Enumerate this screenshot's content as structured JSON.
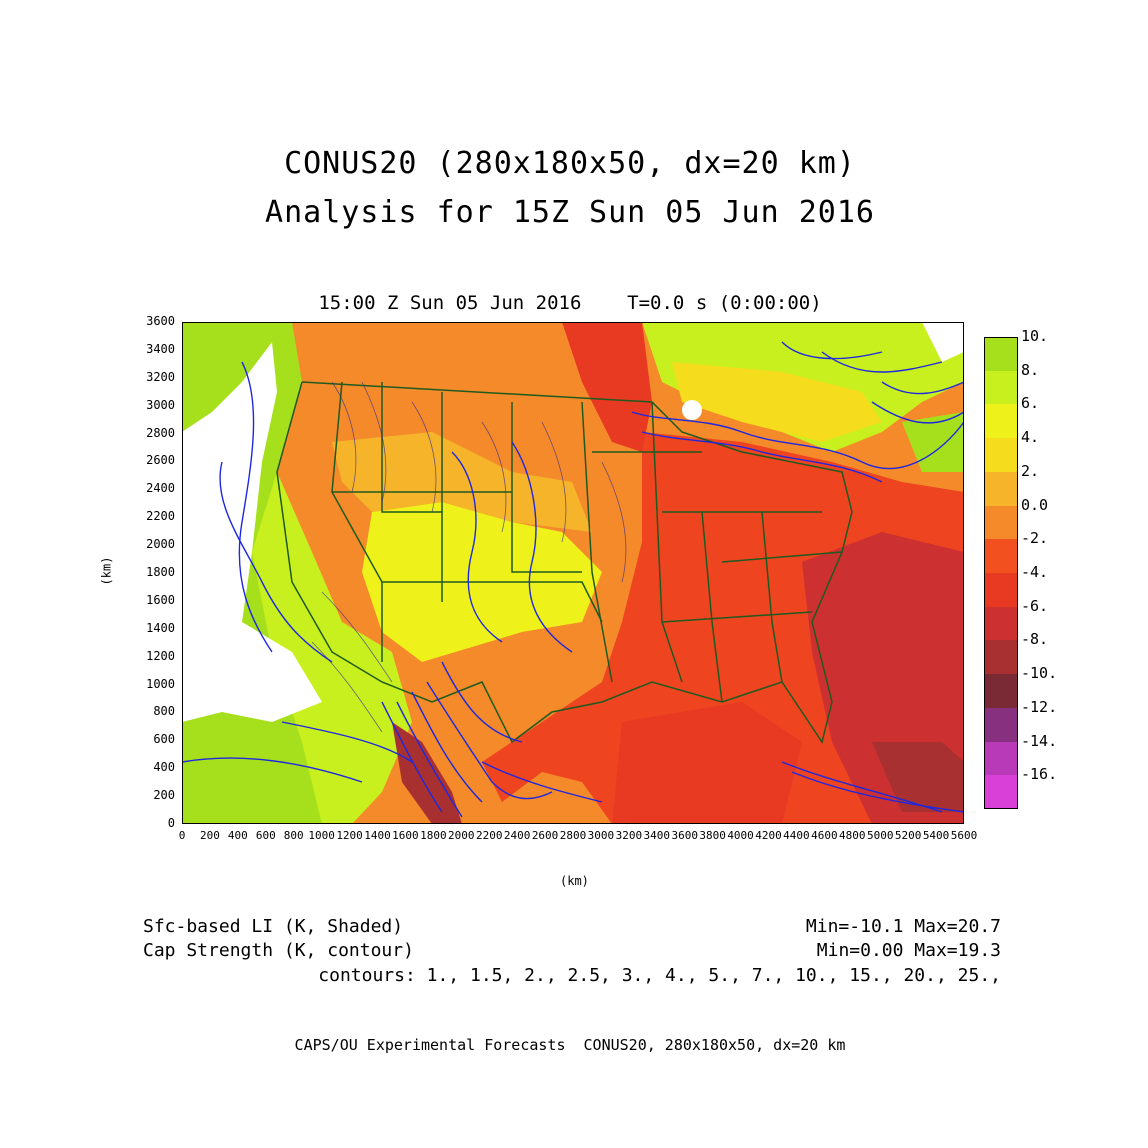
{
  "title": {
    "line1": "CONUS20 (280x180x50, dx=20 km)",
    "line2": "Analysis for 15Z Sun 05 Jun 2016"
  },
  "subtitle": "15:00 Z Sun 05 Jun 2016    T=0.0 s (0:00:00)",
  "axes": {
    "xlabel": "(km)",
    "ylabel": "(km)",
    "xlim": [
      0,
      5600
    ],
    "ylim": [
      0,
      3600
    ],
    "xticks": [
      "0",
      "200",
      "400",
      "600",
      "800",
      "1000",
      "1200",
      "1400",
      "1600",
      "1800",
      "2000",
      "2200",
      "2400",
      "2600",
      "2800",
      "3000",
      "3200",
      "3400",
      "3600",
      "3800",
      "4000",
      "4200",
      "4400",
      "4600",
      "4800",
      "5000",
      "5200",
      "5400",
      "5600"
    ],
    "yticks": [
      "0",
      "200",
      "400",
      "600",
      "800",
      "1000",
      "1200",
      "1400",
      "1600",
      "1800",
      "2000",
      "2200",
      "2400",
      "2600",
      "2800",
      "3000",
      "3200",
      "3400",
      "3600"
    ]
  },
  "colorbar": {
    "labels": [
      "10.",
      "8.",
      "6.",
      "4.",
      "2.",
      "0.0",
      "-2.",
      "-4.",
      "-6.",
      "-8.",
      "-10.",
      "-12.",
      "-14.",
      "-16."
    ],
    "colors": [
      "#a6e01c",
      "#c8f01e",
      "#eef21a",
      "#f5dc1c",
      "#f5b42a",
      "#f48a2a",
      "#f2501e",
      "#e83a22",
      "#cc3030",
      "#a83030",
      "#7a2a34",
      "#883080",
      "#b83ab8",
      "#d840d8"
    ]
  },
  "info": {
    "field1_name": "Sfc-based LI (K, Shaded)",
    "field1_stats": "Min=-10.1 Max=20.7",
    "field2_name": "Cap Strength (K, contour)",
    "field2_stats": "Min=0.00 Max=19.3",
    "contours": "contours: 1., 1.5, 2., 2.5, 3., 4., 5., 7., 10., 15., 20., 25.,"
  },
  "footer": "CAPS/OU Experimental Forecasts  CONUS20, 280x180x50, dx=20 km",
  "map_colors": {
    "contour": "#1e28e0",
    "border": "#1f5a1f",
    "land_positive": "#f5a030",
    "land_negative": "#ee4420"
  }
}
